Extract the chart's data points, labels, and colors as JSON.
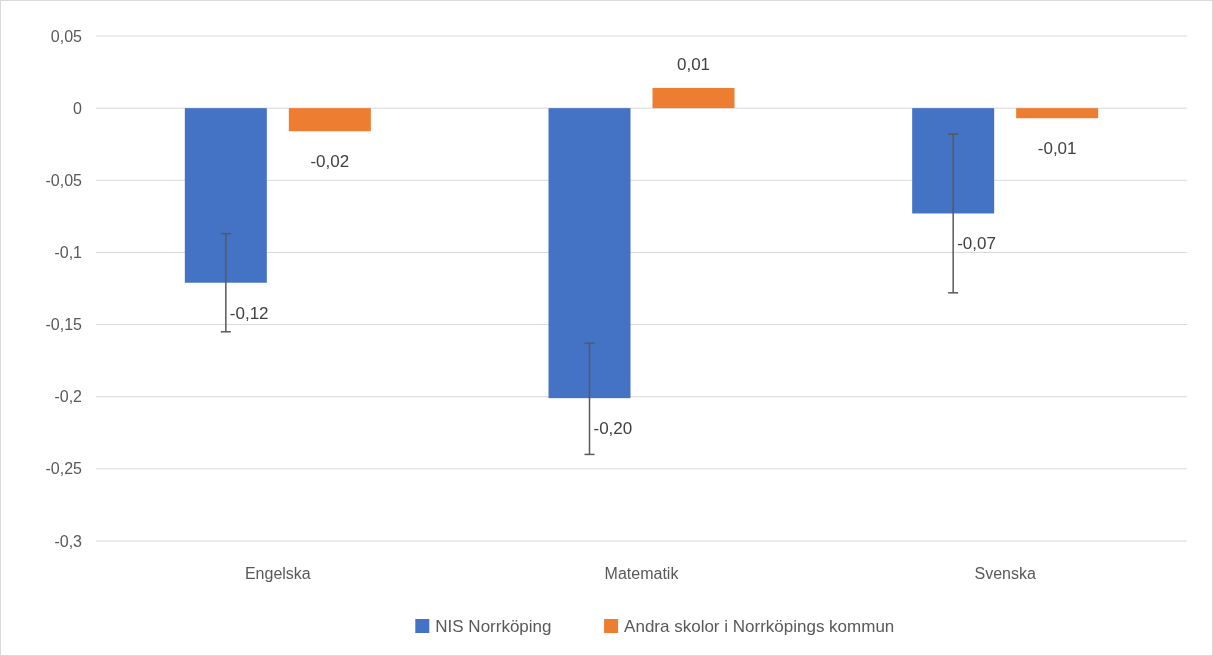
{
  "chart_data": {
    "type": "bar",
    "categories": [
      "Engelska",
      "Matematik",
      "Svenska"
    ],
    "series": [
      {
        "name": "NIS Norrköping",
        "color": "#4472c4",
        "values": [
          -0.121,
          -0.201,
          -0.073
        ],
        "value_labels": [
          "-0,12",
          "-0,20",
          "-0,07"
        ],
        "errors": [
          [
            -0.155,
            -0.087
          ],
          [
            -0.24,
            -0.163
          ],
          [
            -0.128,
            -0.018
          ]
        ]
      },
      {
        "name": "Andra skolor i Norrköpings kommun",
        "color": "#ed7d31",
        "values": [
          -0.016,
          0.014,
          -0.007
        ],
        "value_labels": [
          "-0,02",
          "0,01",
          "-0,01"
        ]
      }
    ],
    "ylim": [
      -0.3,
      0.05
    ],
    "yticks": [
      {
        "value": 0.05,
        "label": "0,05"
      },
      0,
      {
        "value": -0.05,
        "label": "-0,05"
      },
      {
        "value": -0.1,
        "label": "-0,1"
      },
      {
        "value": -0.15,
        "label": "-0,15"
      },
      {
        "value": -0.2,
        "label": "-0,2"
      },
      {
        "value": -0.25,
        "label": "-0,25"
      },
      {
        "value": -0.3,
        "label": "-0,3"
      }
    ],
    "grid": "y",
    "legend": "bottom"
  }
}
